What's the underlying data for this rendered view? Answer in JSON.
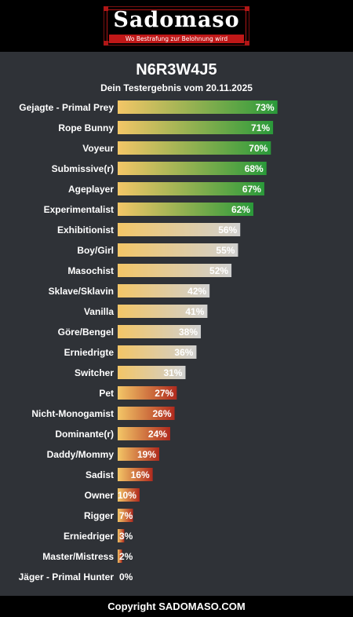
{
  "header": {
    "logo_text": "Sadomaso",
    "logo_tagline": "Wo Bestrafung zur Belohnung wird"
  },
  "page": {
    "title": "N6R3W4J5",
    "subtitle": "Dein Testergebnis vom 20.11.2025"
  },
  "footer": {
    "copyright": "Copyright SADOMASO.COM"
  },
  "colors": {
    "background": "#2f3237",
    "bar_start": "#f3c667",
    "high": "#2a9a3a",
    "mid": "#d0d0d0",
    "low": "#b02a1e"
  },
  "chart_data": {
    "type": "bar",
    "orientation": "horizontal",
    "xlim": [
      0,
      100
    ],
    "value_suffix": "%",
    "categories": [
      "Gejagte - Primal Prey",
      "Rope Bunny",
      "Voyeur",
      "Submissive(r)",
      "Ageplayer",
      "Experimentalist",
      "Exhibitionist",
      "Boy/Girl",
      "Masochist",
      "Sklave/Sklavin",
      "Vanilla",
      "Göre/Bengel",
      "Erniedrigte",
      "Switcher",
      "Pet",
      "Nicht-Monogamist",
      "Dominante(r)",
      "Daddy/Mommy",
      "Sadist",
      "Owner",
      "Rigger",
      "Erniedriger",
      "Master/Mistress",
      "Jäger - Primal Hunter"
    ],
    "values": [
      73,
      71,
      70,
      68,
      67,
      62,
      56,
      55,
      52,
      42,
      41,
      38,
      36,
      31,
      27,
      26,
      24,
      19,
      16,
      10,
      7,
      3,
      2,
      0
    ],
    "labels": [
      "73%",
      "71%",
      "70%",
      "68%",
      "67%",
      "62%",
      "56%",
      "55%",
      "52%",
      "42%",
      "41%",
      "38%",
      "36%",
      "31%",
      "27%",
      "26%",
      "24%",
      "19%",
      "16%",
      "10%",
      "7%",
      "3%",
      "2%",
      "0%"
    ]
  }
}
